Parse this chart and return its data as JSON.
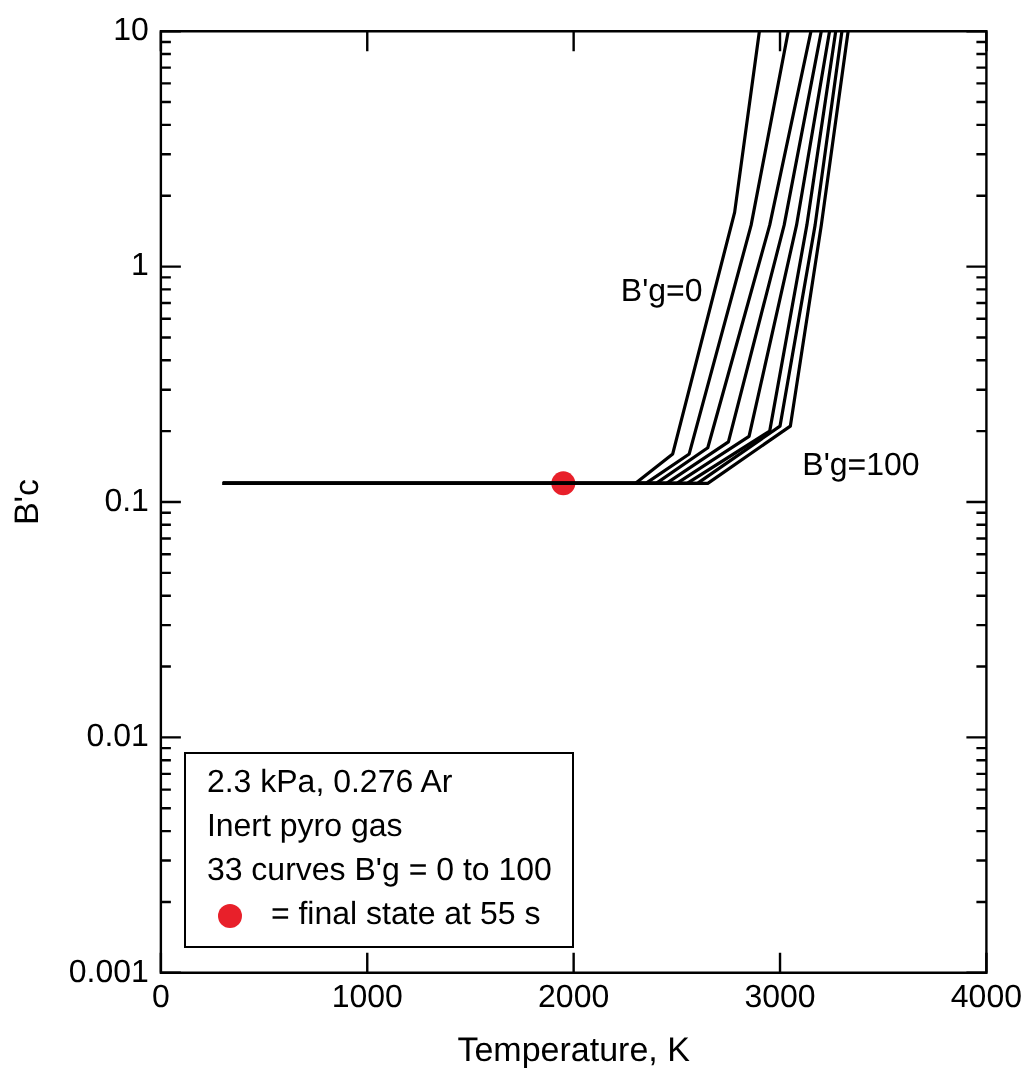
{
  "chart_data": {
    "type": "line",
    "xlabel": "Temperature, K",
    "ylabel": "B'c",
    "log": "y",
    "grid": false,
    "legend": "bottom left",
    "marker": "none",
    "line_style": "solid",
    "xlim": [
      0,
      4000
    ],
    "xticks": [
      0,
      1000,
      2000,
      3000,
      4000
    ],
    "ylim": [
      0.001,
      10
    ],
    "yticks": [
      0.001,
      {
        "value": 0.002,
        "label": null
      },
      {
        "value": 0.003,
        "label": null
      },
      {
        "value": 0.004,
        "label": null
      },
      {
        "value": 0.005,
        "label": null
      },
      {
        "value": 0.006,
        "label": null
      },
      {
        "value": 0.007,
        "label": null
      },
      {
        "value": 0.008,
        "label": null
      },
      {
        "value": 0.009,
        "label": null
      },
      0.01,
      {
        "value": 0.02,
        "label": null
      },
      {
        "value": 0.03,
        "label": null
      },
      {
        "value": 0.04,
        "label": null
      },
      {
        "value": 0.05,
        "label": null
      },
      {
        "value": 0.06,
        "label": null
      },
      {
        "value": 0.07,
        "label": null
      },
      {
        "value": 0.08,
        "label": null
      },
      {
        "value": 0.09,
        "label": null
      },
      0.1,
      {
        "value": 0.2,
        "label": null
      },
      {
        "value": 0.3,
        "label": null
      },
      {
        "value": 0.4,
        "label": null
      },
      {
        "value": 0.5,
        "label": null
      },
      {
        "value": 0.6,
        "label": null
      },
      {
        "value": 0.7,
        "label": null
      },
      {
        "value": 0.8,
        "label": null
      },
      {
        "value": 0.9,
        "label": null
      },
      1,
      {
        "value": 2,
        "label": null
      },
      {
        "value": 3,
        "label": null
      },
      {
        "value": 4,
        "label": null
      },
      {
        "value": 5,
        "label": null
      },
      {
        "value": 6,
        "label": null
      },
      {
        "value": 7,
        "label": null
      },
      {
        "value": 8,
        "label": null
      },
      {
        "value": 9,
        "label": null
      },
      10
    ],
    "series": [
      {
        "color": "#000000",
        "x": [
          300,
          2300,
          2480,
          2780,
          2900
        ],
        "values": [
          0.12,
          0.12,
          0.16,
          1.7,
          10
        ]
      },
      {
        "color": "#000000",
        "x": [
          300,
          2350,
          2560,
          2860,
          3040
        ],
        "values": [
          0.12,
          0.12,
          0.16,
          1.5,
          10
        ]
      },
      {
        "color": "#000000",
        "x": [
          300,
          2400,
          2650,
          2950,
          3150
        ],
        "values": [
          0.12,
          0.12,
          0.17,
          1.5,
          10
        ]
      },
      {
        "color": "#000000",
        "x": [
          300,
          2450,
          2750,
          3020,
          3200
        ],
        "values": [
          0.12,
          0.12,
          0.18,
          1.5,
          10
        ]
      },
      {
        "color": "#000000",
        "x": [
          300,
          2500,
          2850,
          3080,
          3240
        ],
        "values": [
          0.12,
          0.12,
          0.19,
          1.5,
          10
        ]
      },
      {
        "color": "#000000",
        "x": [
          300,
          2550,
          2950,
          3130,
          3270
        ],
        "values": [
          0.12,
          0.12,
          0.2,
          1.5,
          10
        ]
      },
      {
        "color": "#000000",
        "x": [
          300,
          2600,
          3000,
          3170,
          3300
        ],
        "values": [
          0.12,
          0.12,
          0.21,
          1.5,
          10
        ]
      },
      {
        "color": "#000000",
        "x": [
          300,
          2650,
          3050,
          3200,
          3330
        ],
        "values": [
          0.12,
          0.12,
          0.21,
          1.5,
          10
        ]
      },
      {
        "type": "scatter",
        "name": "= final state at 55 s",
        "color": "#e8202a",
        "marker": "circle",
        "x": [
          1950
        ],
        "values": [
          0.12
        ]
      }
    ],
    "annotations": [
      "2.3 kPa, 0.276 Ar",
      "Inert pyro gas",
      "33 curves B'g = 0 to 100",
      "B'g=0",
      "B'g=100"
    ]
  }
}
